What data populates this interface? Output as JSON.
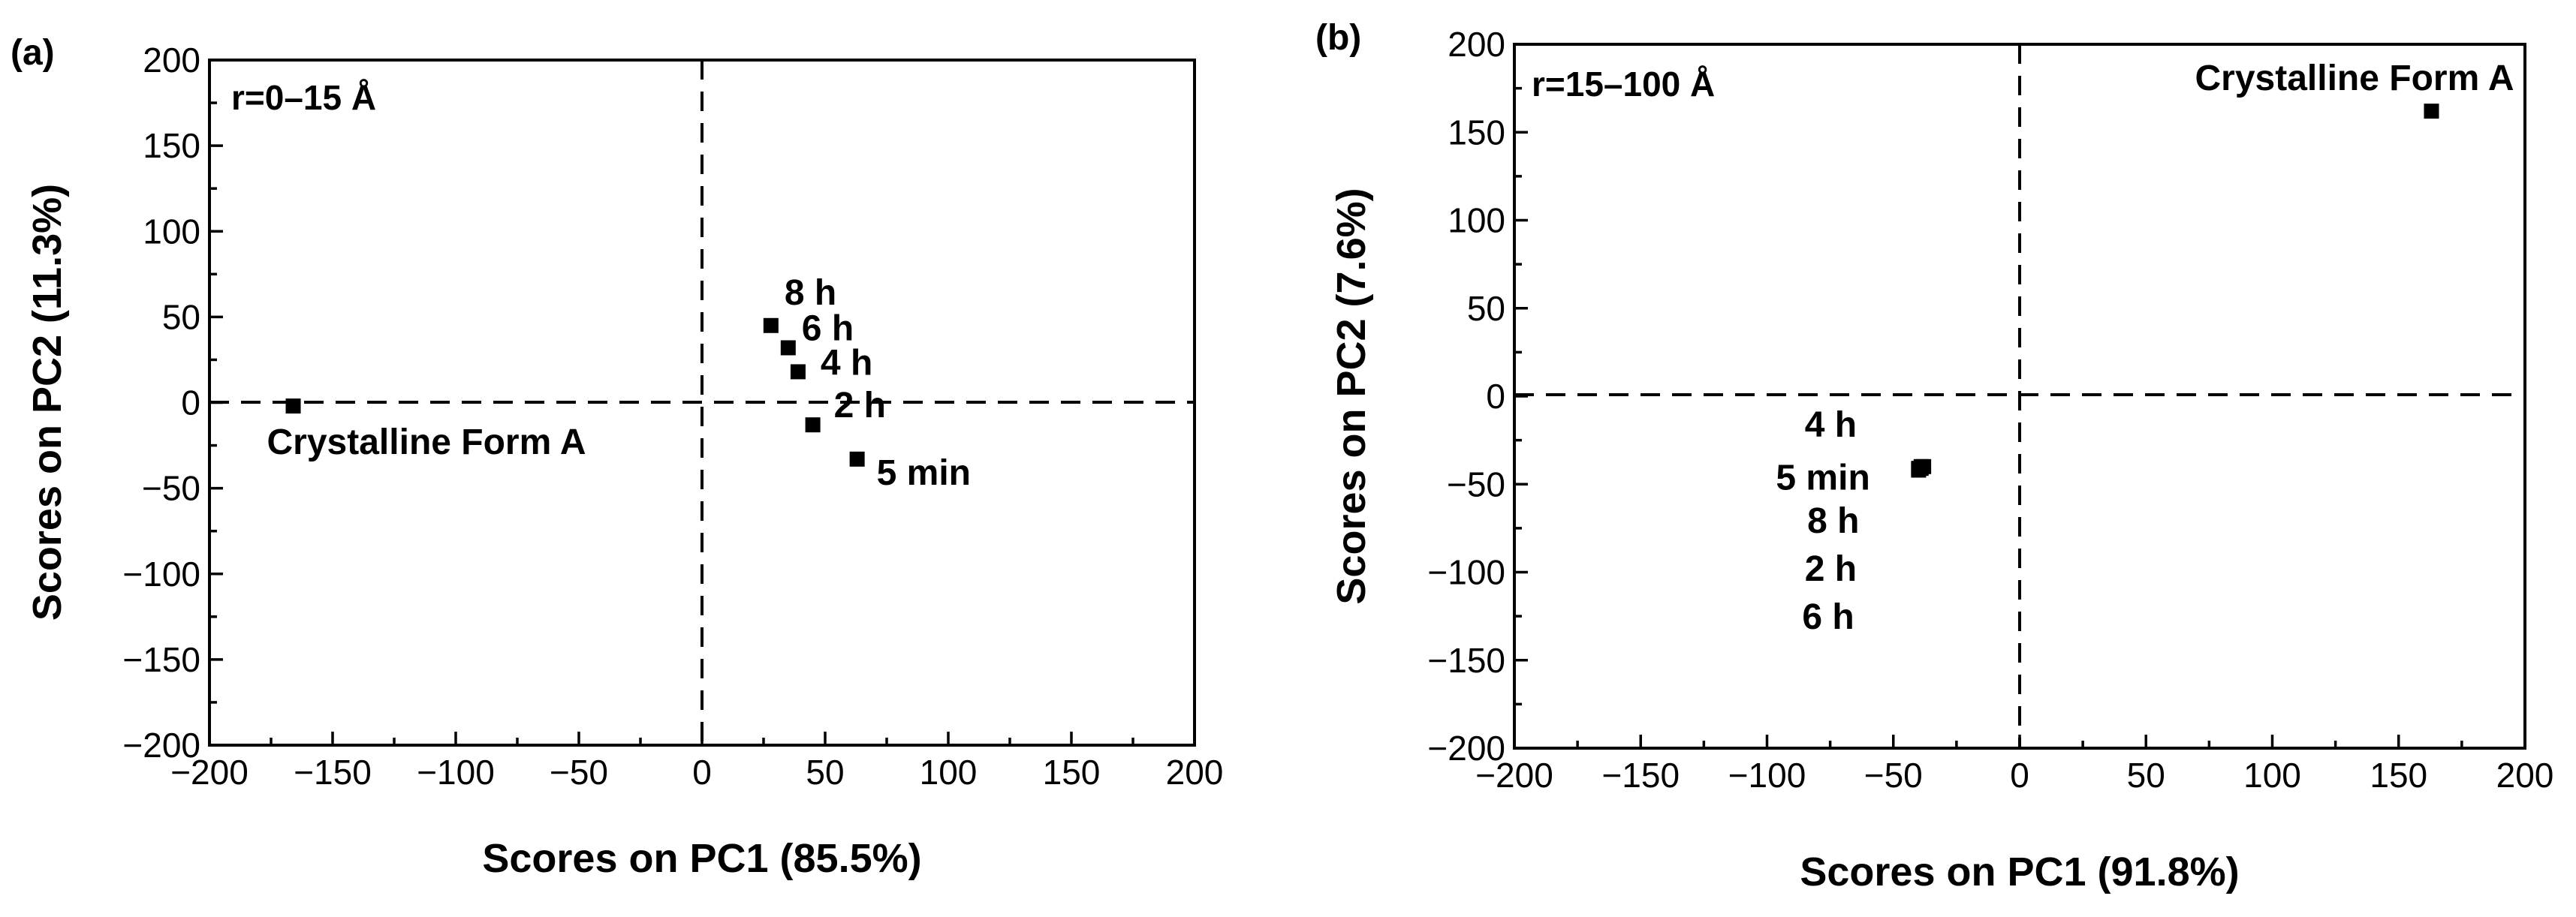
{
  "chart_data": [
    {
      "type": "scatter",
      "panel_label": "(a)",
      "range_label": "r=0–15 Å",
      "xlabel": "Scores on PC1 (85.5%)",
      "ylabel": "Scores on PC2 (11.3%)",
      "xlim": [
        -200,
        200
      ],
      "ylim": [
        -200,
        200
      ],
      "xticks": [
        -200,
        -150,
        -100,
        -50,
        0,
        50,
        100,
        150,
        200
      ],
      "yticks": [
        -200,
        -150,
        -100,
        -50,
        0,
        50,
        100,
        150,
        200
      ],
      "tick_labels": {
        "x": [
          "−200",
          "−150",
          "−100",
          "−50",
          "0",
          "50",
          "100",
          "150",
          "200"
        ],
        "y": [
          "−200",
          "−150",
          "−100",
          "−50",
          "0",
          "50",
          "100",
          "150",
          "200"
        ]
      },
      "reference_lines": [
        "x=0",
        "y=0"
      ],
      "points": [
        {
          "label": "Crystalline Form A",
          "x": -166,
          "y": -2
        },
        {
          "label": "8 h",
          "x": 28,
          "y": 45
        },
        {
          "label": "6 h",
          "x": 35,
          "y": 32
        },
        {
          "label": "4 h",
          "x": 39,
          "y": 18
        },
        {
          "label": "2 h",
          "x": 45,
          "y": -13
        },
        {
          "label": "5 min",
          "x": 63,
          "y": -33
        }
      ]
    },
    {
      "type": "scatter",
      "panel_label": "(b)",
      "range_label": "r=15–100 Å",
      "xlabel": "Scores on PC1 (91.8%)",
      "ylabel": "Scores on PC2 (7.6%)",
      "xlim": [
        -200,
        200
      ],
      "ylim": [
        -200,
        200
      ],
      "xticks": [
        -200,
        -150,
        -100,
        -50,
        0,
        50,
        100,
        150,
        200
      ],
      "yticks": [
        -200,
        -150,
        -100,
        -50,
        0,
        50,
        100,
        150,
        200
      ],
      "tick_labels": {
        "x": [
          "−200",
          "−150",
          "−100",
          "−50",
          "0",
          "50",
          "100",
          "150",
          "200"
        ],
        "y": [
          "−200",
          "−150",
          "−100",
          "−50",
          "0",
          "50",
          "100",
          "150",
          "200"
        ]
      },
      "reference_lines": [
        "x=0",
        "y=0"
      ],
      "points": [
        {
          "label": "Crystalline Form A",
          "x": 163,
          "y": 162
        },
        {
          "label": "4 h",
          "x": -39,
          "y": -41
        },
        {
          "label": "5 min",
          "x": -40,
          "y": -42
        },
        {
          "label": "8 h",
          "x": -38,
          "y": -40
        },
        {
          "label": "2 h",
          "x": -39,
          "y": -40
        },
        {
          "label": "6 h",
          "x": -40,
          "y": -41
        }
      ]
    }
  ]
}
